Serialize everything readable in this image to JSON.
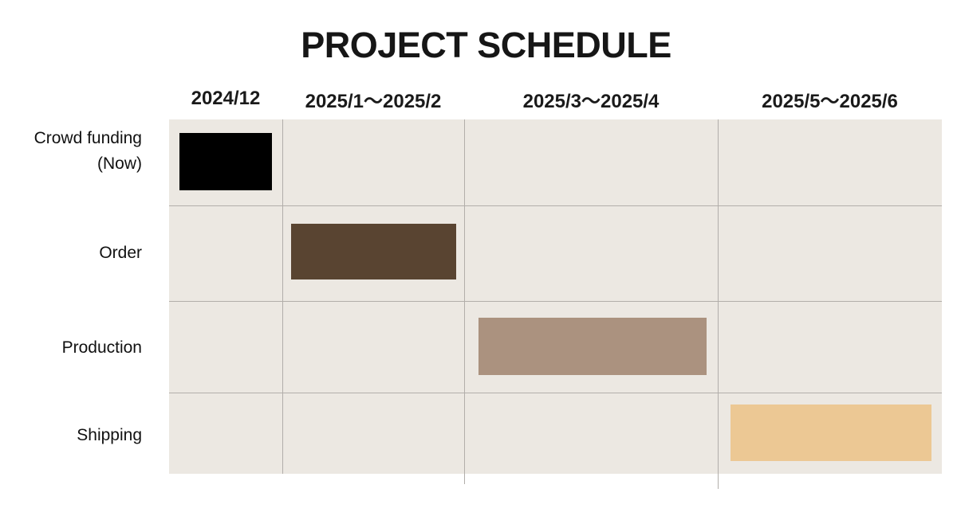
{
  "title": "PROJECT SCHEDULE",
  "colors": {
    "page_bg": "#ffffff",
    "grid_bg": "#ece8e2",
    "grid_line": "#b2aeaa",
    "title_text": "#161616",
    "header_text": "#1a1a1a",
    "label_text": "#111111",
    "bar_crowd_funding": "#000000",
    "bar_order": "#594431",
    "bar_production": "#ab927f",
    "bar_shipping": "#ecc894"
  },
  "chart_data": {
    "type": "gantt",
    "title": "PROJECT SCHEDULE",
    "columns": [
      "2024/12",
      "2025/1〜2025/2",
      "2025/3〜2025/4",
      "2025/5〜2025/6"
    ],
    "rows": [
      {
        "label_lines": [
          "Crowd funding",
          "(Now)"
        ],
        "period": "2024/12",
        "column_index": 0,
        "color": "#000000"
      },
      {
        "label_lines": [
          "Order"
        ],
        "period": "2025/1〜2025/2",
        "column_index": 1,
        "color": "#594431"
      },
      {
        "label_lines": [
          "Production"
        ],
        "period": "2025/3〜2025/4",
        "column_index": 2,
        "color": "#ab927f"
      },
      {
        "label_lines": [
          "Shipping"
        ],
        "period": "2025/5〜2025/6",
        "column_index": 3,
        "color": "#ecc894"
      }
    ],
    "grid": true,
    "legend": false
  }
}
